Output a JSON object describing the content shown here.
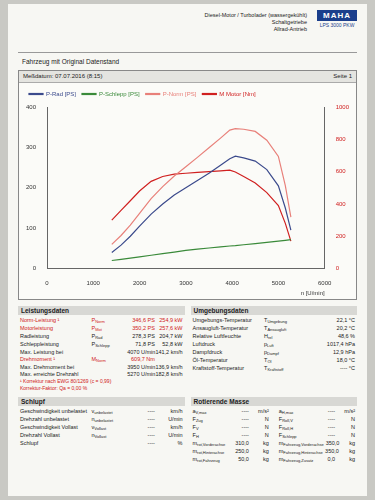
{
  "header": {
    "brand": "MAHA",
    "model": "LPS 3000 PKW",
    "lines": [
      "Diesel-Motor / Turbolader (wassergekühlt)",
      "Schaltgetriebe",
      "Allrad-Antrieb"
    ],
    "vehicle": "Fahrzeug mit Original Datenstand",
    "date": "Meßdatum: 07.07.2016 (8:15)",
    "page": "Seite 1"
  },
  "chart_data": {
    "type": "line",
    "x_label": "n [U/min]",
    "x": [
      1400,
      1600,
      1800,
      2000,
      2250,
      2500,
      2750,
      3000,
      3250,
      3500,
      3750,
      3950,
      4070,
      4250,
      4500,
      4750,
      5000,
      5150,
      5270
    ],
    "xlim": [
      0,
      6000
    ],
    "xticks": [
      0,
      1000,
      2000,
      3000,
      4000,
      5000,
      6000
    ],
    "ylim": [
      0,
      400
    ],
    "yticks": [
      0,
      100,
      200,
      300,
      400
    ],
    "y2lim": [
      0,
      1000
    ],
    "y2ticks": [
      0,
      200,
      400,
      600,
      800,
      1000
    ],
    "grid": false,
    "legend": "upper left",
    "series": [
      {
        "name": "P-Rad [PS]",
        "color": "#3b4a8c",
        "values": [
          40,
          58,
          80,
          105,
          135,
          160,
          182,
          200,
          218,
          236,
          256,
          272,
          278.3,
          274,
          266,
          245,
          205,
          150,
          95
        ]
      },
      {
        "name": "P-Schlepp [PS]",
        "color": "#3a8a3a",
        "values": [
          20,
          23,
          26,
          29,
          33,
          37,
          41,
          45,
          48,
          51,
          54,
          56,
          57,
          59,
          62,
          65,
          68,
          70,
          71.8
        ]
      },
      {
        "name": "P-Norm [PS]",
        "color": "#e8807a",
        "values": [
          59.8,
          82.0,
          107.6,
          136.7,
          173.0,
          202.9,
          229.1,
          252.0,
          275.3,
          299.0,
          323.0,
          342.9,
          346.6,
          344.9,
          339.6,
          317.9,
          277.7,
          205.3,
          127.6
        ]
      },
      {
        "name": "M Motor [Nm]",
        "color": "#d02020",
        "axis": "y2",
        "values": [
          300,
          360,
          420,
          480,
          540,
          570,
          585,
          590,
          595,
          600,
          605,
          609.7,
          598,
          570,
          530,
          470,
          390,
          280,
          170
        ]
      }
    ]
  },
  "sections": [
    {
      "title": "Leistungsdaten",
      "columns": [
        [
          {
            "label": "Norm-Leistung ¹",
            "sym": "P",
            "sub": "Norm",
            "cells": [
              "346,6 PS",
              "254,9 kW"
            ],
            "color": "#d02020"
          },
          {
            "label": "Motorleistung",
            "sym": "P",
            "sub": "Mot",
            "cells": [
              "350,2 PS",
              "257,6 kW"
            ],
            "color": "#d02020"
          },
          {
            "label": "Radleistung",
            "sym": "P",
            "sub": "Rad",
            "cells": [
              "278,3 PS",
              "204,7 kW"
            ]
          },
          {
            "label": "Schleppleistung",
            "sym": "P",
            "sub": "Schlepp",
            "cells": [
              "71,8 PS",
              "52,8 kW"
            ]
          },
          {
            "label": "Max. Leistung bei",
            "cells": [
              "4070 U/min",
              "141,2 km/h"
            ]
          },
          {
            "label": "Drehmoment ¹",
            "sym": "M",
            "sub": "Norm",
            "cells": [
              "609,7 Nm",
              ""
            ],
            "color": "#d02020"
          },
          {
            "label": "Max. Drehmoment bei",
            "cells": [
              "3950 U/min",
              "136,9 km/h"
            ]
          },
          {
            "label": "Max. erreichte Drehzahl",
            "cells": [
              "5270 U/min",
              "182,8 km/h"
            ]
          }
        ]
      ],
      "notes": [
        "¹ Korrektur nach EWG 80/1269 (c = 0,99)",
        "Korrektur-Faktor: Qa = 0,00 %"
      ]
    },
    {
      "title": "Umgebungsdaten",
      "columns": [
        [
          {
            "label": "Umgebungs-Temperatur",
            "sym": "T",
            "sub": "Umgebung",
            "cells": [
              "22,1 °C"
            ]
          },
          {
            "label": "Ansaugluft-Temperatur",
            "sym": "T",
            "sub": "Ansaugluft",
            "cells": [
              "20,2 °C"
            ]
          },
          {
            "label": "Relative Luftfeuchte",
            "sym": "H",
            "sub": "rel",
            "cells": [
              "48,6 %"
            ]
          },
          {
            "label": "Luftdruck",
            "sym": "p",
            "sub": "Luft",
            "cells": [
              "1017,4 hPa"
            ]
          },
          {
            "label": "Dampfdruck",
            "sym": "p",
            "sub": "Dampf",
            "cells": [
              "12,9 hPa"
            ]
          },
          {
            "label": "Öl-Temperatur",
            "sym": "T",
            "sub": "Öl",
            "cells": [
              "18,0 °C"
            ]
          },
          {
            "label": "Kraftstoff-Temperatur",
            "sym": "T",
            "sub": "Kraftstoff",
            "cells": [
              "---- °C"
            ]
          }
        ]
      ]
    },
    {
      "title": "Schlupf",
      "columns": [
        [
          {
            "label": "Geschwindigkeit unbelastet",
            "sym": "v",
            "sub": "unbelastet",
            "cells": [
              "----",
              "km/h"
            ]
          },
          {
            "label": "Drehzahl unbelastet",
            "sym": "n",
            "sub": "unbelastet",
            "cells": [
              "----",
              "U/min"
            ]
          },
          {
            "label": "Geschwindigkeit Vollast",
            "sym": "v",
            "sub": "Vollast",
            "cells": [
              "----",
              "km/h"
            ]
          },
          {
            "label": "Drehzahl Vollast",
            "sym": "n",
            "sub": "Vollast",
            "cells": [
              "----",
              "U/min"
            ]
          },
          {
            "label": "Schlupf",
            "cells": [
              "----",
              "%"
            ]
          }
        ]
      ]
    },
    {
      "title": "Rotierende Masse",
      "columns": [
        [
          {
            "sym": "a",
            "sub": "V,max",
            "cells": [
              "----",
              "m/s²"
            ]
          },
          {
            "sym": "F",
            "sub": "Zug",
            "cells": [
              "----",
              "N"
            ]
          },
          {
            "sym": "F",
            "sub": "V",
            "cells": [
              "----",
              "N"
            ]
          },
          {
            "sym": "F",
            "sub": "H",
            "cells": [
              "----",
              "N"
            ]
          },
          {
            "sym": "m",
            "sub": "rot,Vorderachse",
            "cells": [
              "310,0",
              "kg"
            ]
          },
          {
            "sym": "m",
            "sub": "rot,Hinterachse",
            "cells": [
              "250,0",
              "kg"
            ]
          },
          {
            "sym": "m",
            "sub": "rot,Fahrzeug",
            "cells": [
              "50,0",
              "kg"
            ]
          }
        ],
        [
          {
            "sym": "a",
            "sub": "H,max",
            "cells": [
              "----",
              "m/s²"
            ]
          },
          {
            "sym": "F",
            "sub": "Roll,V",
            "cells": [
              "----",
              "N"
            ]
          },
          {
            "sym": "F",
            "sub": "Roll,H",
            "cells": [
              "----",
              "N"
            ]
          },
          {
            "sym": "F",
            "sub": "Schlepp",
            "cells": [
              "----",
              "N"
            ]
          },
          {
            "sym": "m",
            "sub": "Fahrzeug,Vorderachse",
            "cells": [
              "350,0",
              "kg"
            ]
          },
          {
            "sym": "m",
            "sub": "Fahrzeug,Hinterachse",
            "cells": [
              "350,0",
              "kg"
            ]
          },
          {
            "sym": "m",
            "sub": "Fahrzeug,Zusatz",
            "cells": [
              "0,0",
              "kg"
            ]
          }
        ]
      ]
    }
  ]
}
